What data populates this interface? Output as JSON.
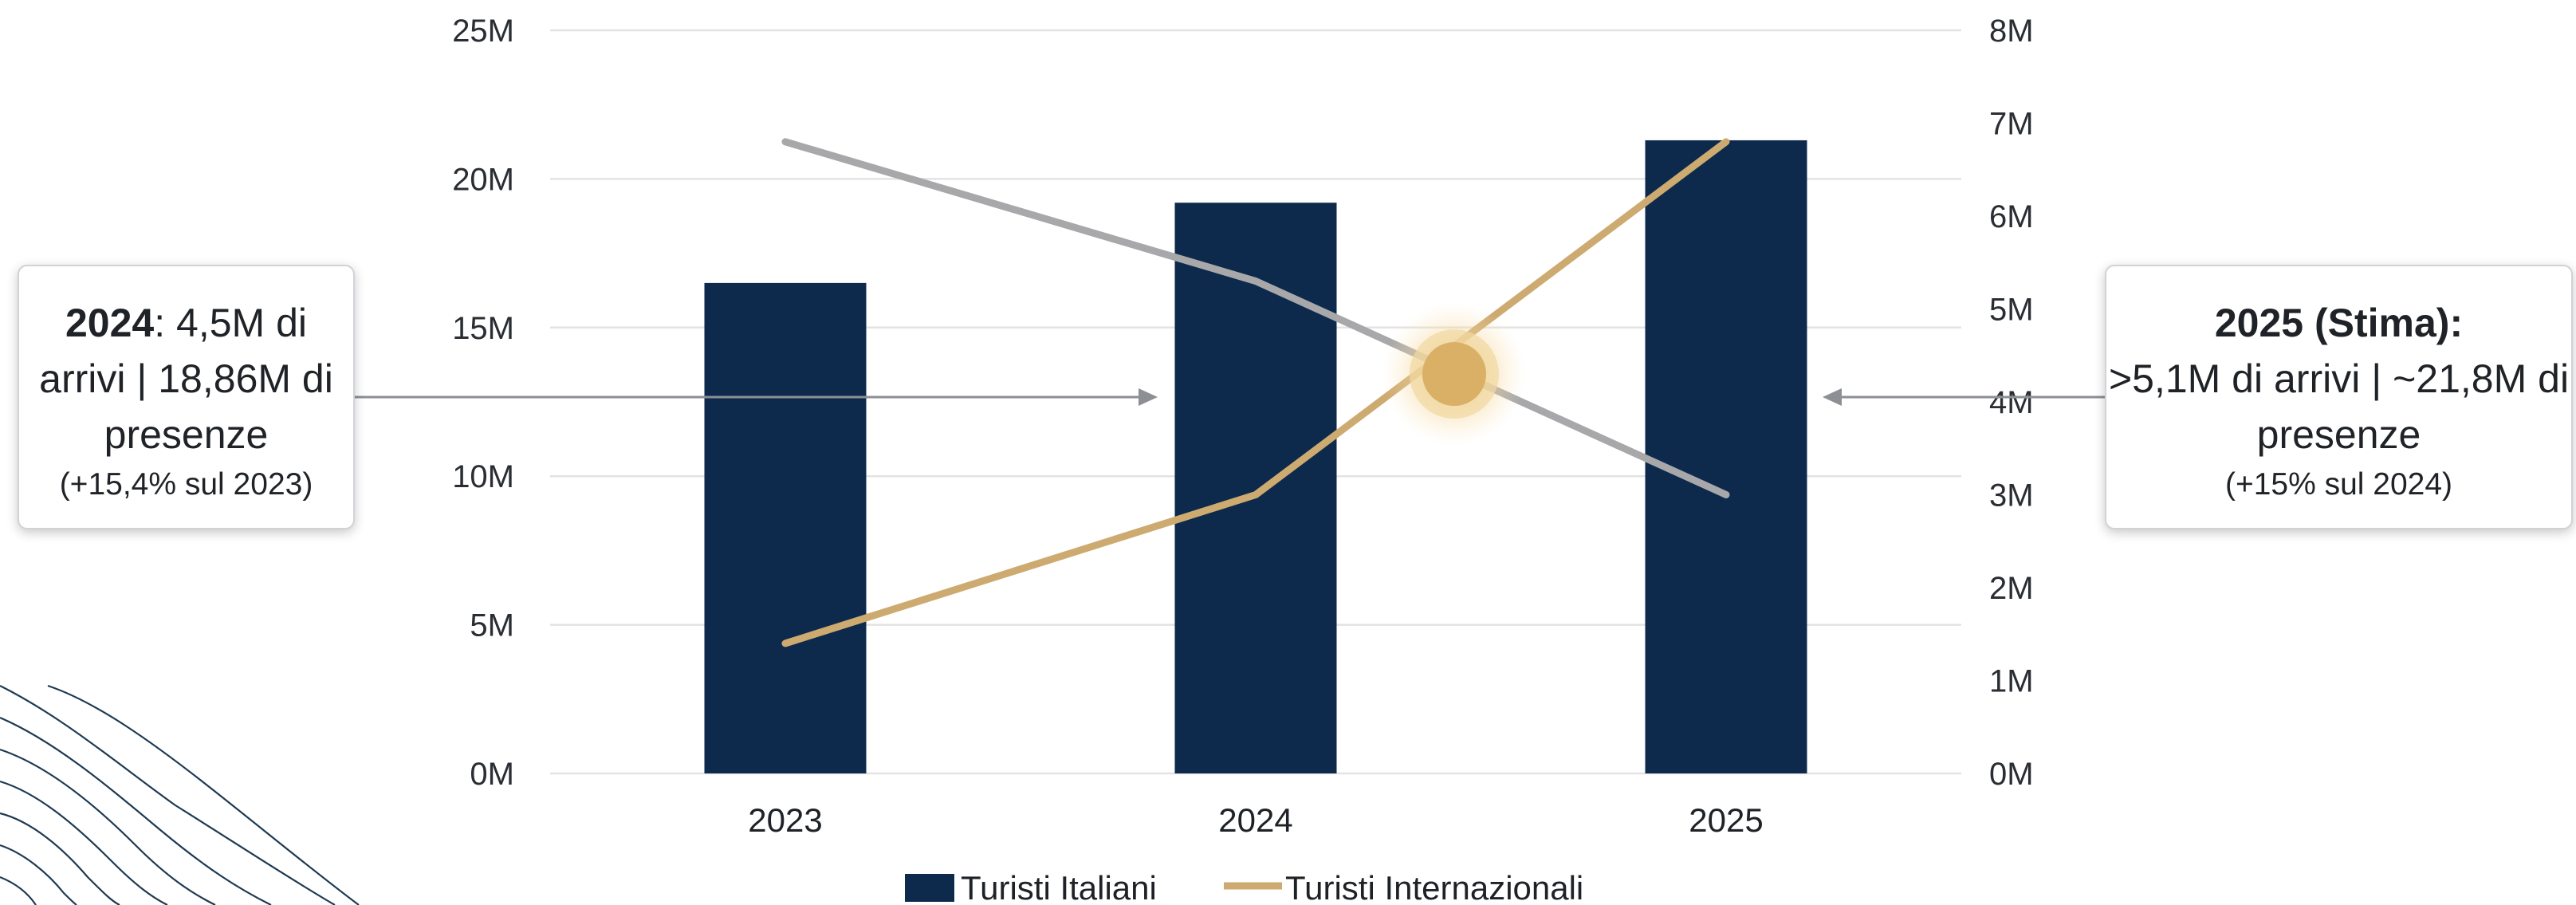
{
  "chart_data": {
    "type": "bar+line",
    "categories": [
      "2023",
      "2024",
      "2025"
    ],
    "series": [
      {
        "name": "Turisti Italiani",
        "type": "bar",
        "axis": "left",
        "values": [
          16.5,
          19.2,
          21.3
        ],
        "color": "#0d2a4c"
      },
      {
        "name": "Turisti Internazionali",
        "type": "line",
        "axis": "right",
        "values": [
          1.4,
          3.0,
          6.8
        ],
        "color": "#cdaa70"
      },
      {
        "type": "line",
        "axis": "right",
        "values": [
          6.8,
          5.3,
          3.0
        ],
        "color": "#a8a8aa"
      }
    ],
    "y_left": {
      "range": [
        0,
        25
      ],
      "ticks": [
        "0M",
        "5M",
        "10M",
        "15M",
        "20M",
        "25M"
      ]
    },
    "y_right": {
      "range": [
        0,
        8
      ],
      "ticks": [
        "0M",
        "1M",
        "2M",
        "3M",
        "4M",
        "5M",
        "6M",
        "7M",
        "8M"
      ]
    },
    "grid": true,
    "legend": "bottom",
    "highlight": {
      "x_position": 1.5,
      "y_right": 4.3,
      "color": "#d9b066"
    },
    "annotations": [
      {
        "id": "2024",
        "year": "2024",
        "text": ": 4,5M di arrivi | 18,86M di presenze",
        "note": "(+15,4% sul 2023)"
      },
      {
        "id": "2025",
        "year": "2025 (Stima):",
        "text": ">5,1M di arrivi | ~21,8M di presenze",
        "note": "(+15% sul 2024)"
      }
    ]
  }
}
